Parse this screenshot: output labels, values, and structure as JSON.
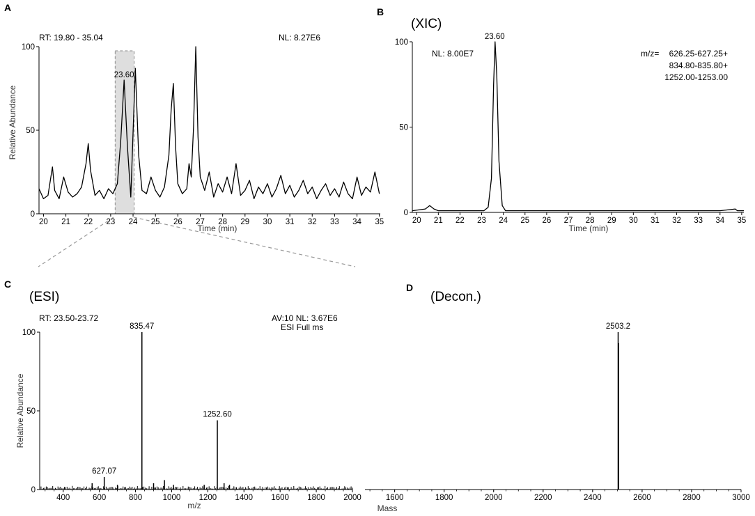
{
  "panels": [
    {
      "id": "A",
      "label": "A",
      "tag": "",
      "header_left": "RT:  19.80 - 35.04",
      "header_right": "NL: 8.27E6",
      "header_right2": "",
      "ylabel": "Relative Abundance",
      "xlabel": "Time (min)",
      "peak_label": "23.60",
      "mz_label": "",
      "mz_lines": []
    },
    {
      "id": "B",
      "label": "B",
      "tag": "(XIC)",
      "header_left": "",
      "header_right": "",
      "header_right2": "",
      "ylabel": "",
      "xlabel": "Time (min)",
      "nl_label": "NL: 8.00E7",
      "peak_label": "23.60",
      "mz_label": "m/z=",
      "mz_lines": [
        "626.25-627.25+",
        "834.80-835.80+",
        "1252.00-1253.00"
      ]
    },
    {
      "id": "C",
      "label": "C",
      "tag": "(ESI)",
      "header_left": "RT: 23.50-23.72",
      "header_right": "AV:10    NL: 3.67E6",
      "header_right2": "ESI  Full ms",
      "ylabel": "Relative Abundance",
      "xlabel": "m/z",
      "peak_label": "",
      "mz_label": "",
      "mz_lines": []
    },
    {
      "id": "D",
      "label": "D",
      "tag": "(Decon.)",
      "header_left": "",
      "header_right": "",
      "header_right2": "",
      "ylabel": "",
      "xlabel": "Mass",
      "peak_label": "",
      "mz_label": "",
      "mz_lines": []
    }
  ],
  "chart_data": [
    {
      "panel": "A",
      "type": "line",
      "title": "",
      "xlabel": "Time (min)",
      "ylabel": "Relative Abundance",
      "xlim": [
        19.8,
        35.04
      ],
      "ylim": [
        0,
        100
      ],
      "xticks": [
        20,
        21,
        22,
        23,
        24,
        25,
        26,
        27,
        28,
        29,
        30,
        31,
        32,
        33,
        34,
        35
      ],
      "yticks": [
        0,
        50,
        100
      ],
      "highlight_range": [
        23.2,
        24.05
      ],
      "annotations": [
        {
          "x": 23.6,
          "y": 80,
          "text": "23.60"
        }
      ],
      "series": [
        {
          "x": [
            19.8,
            20.0,
            20.2,
            20.4,
            20.5,
            20.7,
            20.9,
            21.1,
            21.3,
            21.5,
            21.7,
            21.9,
            22.0,
            22.1,
            22.3,
            22.5,
            22.7,
            22.9,
            23.1,
            23.3,
            23.45,
            23.6,
            23.75,
            23.9,
            24.0,
            24.1,
            24.25,
            24.4,
            24.6,
            24.8,
            25.0,
            25.2,
            25.4,
            25.6,
            25.7,
            25.8,
            25.9,
            26.0,
            26.2,
            26.4,
            26.5,
            26.6,
            26.7,
            26.8,
            26.9,
            27.0,
            27.2,
            27.4,
            27.6,
            27.8,
            28.0,
            28.2,
            28.4,
            28.6,
            28.8,
            29.0,
            29.2,
            29.4,
            29.6,
            29.8,
            30.0,
            30.2,
            30.4,
            30.6,
            30.8,
            31.0,
            31.2,
            31.4,
            31.6,
            31.8,
            32.0,
            32.2,
            32.4,
            32.6,
            32.8,
            33.0,
            33.2,
            33.4,
            33.6,
            33.8,
            34.0,
            34.2,
            34.4,
            34.6,
            34.8,
            35.0
          ],
          "y": [
            15,
            9,
            11,
            28,
            14,
            9,
            22,
            13,
            10,
            12,
            16,
            30,
            42,
            26,
            11,
            14,
            9,
            15,
            12,
            18,
            44,
            80,
            40,
            10,
            48,
            87,
            35,
            14,
            12,
            22,
            14,
            10,
            16,
            35,
            62,
            78,
            40,
            18,
            12,
            15,
            30,
            22,
            52,
            100,
            46,
            22,
            14,
            25,
            10,
            18,
            13,
            22,
            12,
            30,
            11,
            14,
            20,
            9,
            16,
            12,
            18,
            10,
            15,
            23,
            12,
            17,
            10,
            14,
            20,
            12,
            16,
            9,
            14,
            18,
            11,
            15,
            10,
            19,
            12,
            9,
            22,
            11,
            16,
            13,
            25,
            12
          ]
        }
      ]
    },
    {
      "panel": "B",
      "type": "line",
      "title": "",
      "xlabel": "Time (min)",
      "ylabel": "",
      "xlim": [
        19.8,
        35.1
      ],
      "ylim": [
        0,
        100
      ],
      "xticks": [
        20,
        21,
        22,
        23,
        24,
        25,
        26,
        27,
        28,
        29,
        30,
        31,
        32,
        33,
        34,
        35
      ],
      "yticks": [
        0,
        50,
        100
      ],
      "annotations": [
        {
          "x": 23.6,
          "y": 100,
          "text": "23.60"
        }
      ],
      "series": [
        {
          "x": [
            19.8,
            20.4,
            20.6,
            20.8,
            21.0,
            21.5,
            22.0,
            22.5,
            22.8,
            23.1,
            23.3,
            23.45,
            23.55,
            23.62,
            23.7,
            23.8,
            23.95,
            24.1,
            24.4,
            25.0,
            26.0,
            27.0,
            28.0,
            29.0,
            30.0,
            31.0,
            32.0,
            33.0,
            34.0,
            34.7,
            34.8,
            35.1
          ],
          "y": [
            1,
            2,
            4,
            2,
            1,
            1,
            1,
            1,
            1,
            1,
            3,
            20,
            75,
            100,
            80,
            30,
            4,
            1,
            1,
            1,
            1,
            1,
            1,
            1,
            1,
            1,
            1,
            1,
            1,
            2,
            1,
            1
          ]
        }
      ]
    },
    {
      "panel": "C",
      "type": "bar",
      "title": "",
      "xlabel": "m/z",
      "ylabel": "Relative Abundance",
      "xlim": [
        270,
        2000
      ],
      "ylim": [
        0,
        100
      ],
      "xticks": [
        400,
        600,
        800,
        1000,
        1200,
        1400,
        1600,
        1800,
        2000
      ],
      "yticks": [
        0,
        50,
        100
      ],
      "peaks": [
        {
          "mz": 627.07,
          "intensity": 8,
          "label": "627.07"
        },
        {
          "mz": 835.47,
          "intensity": 100,
          "label": "835.47"
        },
        {
          "mz": 1252.6,
          "intensity": 44,
          "label": "1252.60"
        },
        {
          "mz": 560,
          "intensity": 4,
          "label": ""
        },
        {
          "mz": 700,
          "intensity": 3,
          "label": ""
        },
        {
          "mz": 900,
          "intensity": 4,
          "label": ""
        },
        {
          "mz": 960,
          "intensity": 6,
          "label": ""
        },
        {
          "mz": 1010,
          "intensity": 3,
          "label": ""
        },
        {
          "mz": 1180,
          "intensity": 3,
          "label": ""
        },
        {
          "mz": 1290,
          "intensity": 4,
          "label": ""
        },
        {
          "mz": 1320,
          "intensity": 3,
          "label": ""
        }
      ]
    },
    {
      "panel": "D",
      "type": "bar",
      "title": "",
      "xlabel": "Mass",
      "ylabel": "",
      "xlim": [
        1480,
        3000
      ],
      "ylim": [
        0,
        100
      ],
      "xticks": [
        1600,
        1800,
        2000,
        2200,
        2400,
        2600,
        2800,
        3000
      ],
      "yticks": [],
      "peaks": [
        {
          "mz": 2503.2,
          "intensity": 100,
          "label": "2503.2"
        },
        {
          "mz": 2505.0,
          "intensity": 93,
          "label": ""
        }
      ]
    }
  ]
}
